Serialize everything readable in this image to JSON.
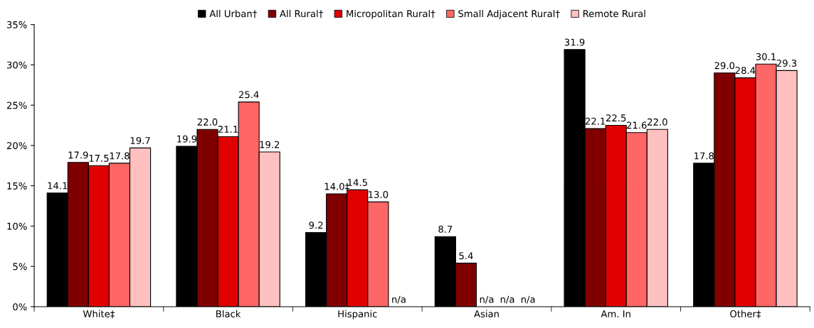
{
  "chart_data": {
    "type": "bar",
    "categories": [
      "White‡",
      "Black",
      "Hispanic",
      "Asian",
      "Am. In",
      "Other‡"
    ],
    "series": [
      {
        "name": "All Urban†",
        "color": "#000000",
        "values": [
          14.1,
          19.9,
          9.2,
          8.7,
          31.9,
          17.8
        ],
        "value_labels": [
          "14.1",
          "19.9",
          "9.2",
          "8.7",
          "31.9",
          "17.8"
        ]
      },
      {
        "name": "All Rural†",
        "color": "#800000",
        "values": [
          17.9,
          22.0,
          14.0,
          5.4,
          22.1,
          29.0
        ],
        "value_labels": [
          "17.9",
          "22.0",
          "14.0‡",
          "5.4",
          "22.1",
          "29.0"
        ]
      },
      {
        "name": "Micropolitan Rural†",
        "color": "#e00000",
        "values": [
          17.5,
          21.1,
          14.5,
          null,
          22.5,
          28.4
        ],
        "value_labels": [
          "17.5",
          "21.1",
          "14.5",
          "n/a",
          "22.5",
          "28.4"
        ]
      },
      {
        "name": "Small Adjacent Rural†",
        "color": "#ff6666",
        "values": [
          17.8,
          25.4,
          13.0,
          null,
          21.6,
          30.1
        ],
        "value_labels": [
          "17.8",
          "25.4",
          "13.0",
          "n/a",
          "21.6",
          "30.1"
        ]
      },
      {
        "name": "Remote Rural",
        "color": "#ffc0c0",
        "values": [
          19.7,
          19.2,
          null,
          null,
          22.0,
          29.3
        ],
        "value_labels": [
          "19.7",
          "19.2",
          "n/a",
          "n/a",
          "22.0",
          "29.3"
        ]
      }
    ],
    "ylim": [
      0,
      35
    ],
    "yticks": [
      {
        "value": 0,
        "label": "0%"
      },
      {
        "value": 5,
        "label": "5%"
      },
      {
        "value": 10,
        "label": "10%"
      },
      {
        "value": 15,
        "label": "15%"
      },
      {
        "value": 20,
        "label": "20%"
      },
      {
        "value": 25,
        "label": "25%"
      },
      {
        "value": 30,
        "label": "30%"
      },
      {
        "value": 35,
        "label": "35%"
      }
    ],
    "grid": false,
    "legend": "top"
  }
}
